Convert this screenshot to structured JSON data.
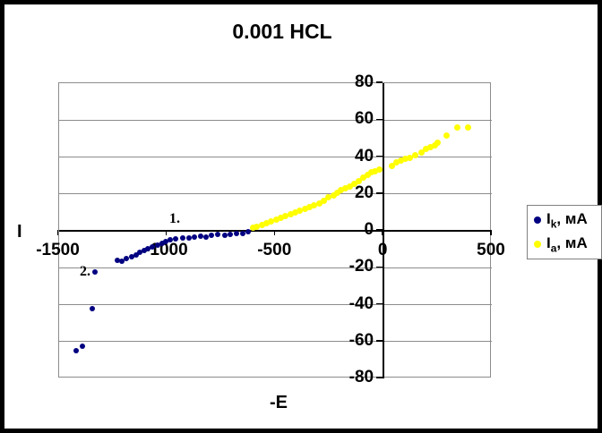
{
  "title": "0.001 HCL",
  "axis_titles": {
    "y": "I",
    "x": "-E"
  },
  "legend": {
    "items": [
      {
        "symbol": "I",
        "sub": "k",
        "suffix": ", мА",
        "series": "cathodic",
        "color": "#000080"
      },
      {
        "symbol": "I",
        "sub": "a",
        "suffix": ", мА",
        "series": "anodic",
        "color": "#FFFF00"
      }
    ]
  },
  "chart_data": {
    "type": "scatter",
    "title": "0.001 HCL",
    "xlabel": "-E",
    "ylabel": "I",
    "xlim": [
      -1500,
      500
    ],
    "ylim": [
      -80,
      80
    ],
    "x_ticks": [
      -1500,
      -1000,
      -500,
      0,
      500
    ],
    "x_tick_labels": [
      "-1500",
      "-1000",
      "-500",
      "0",
      "500"
    ],
    "y_ticks": [
      80,
      60,
      40,
      20,
      0,
      -20,
      -40,
      -60,
      -80
    ],
    "y_tick_labels": [
      "80",
      "60",
      "40",
      "20",
      "0",
      "-20",
      "-40",
      "-60",
      "-80"
    ],
    "grid": "horizontal",
    "legend_position": "right",
    "series": [
      {
        "name": "Ik, мА",
        "color": "#000080",
        "marker_px": 6,
        "points": [
          [
            -1415,
            -65.5
          ],
          [
            -1385,
            -63
          ],
          [
            -1340,
            -42.5
          ],
          [
            -1330,
            -23
          ],
          [
            -1225,
            -16.5
          ],
          [
            -1205,
            -17
          ],
          [
            -1185,
            -15.5
          ],
          [
            -1160,
            -14.5
          ],
          [
            -1140,
            -13.5
          ],
          [
            -1120,
            -12
          ],
          [
            -1100,
            -11
          ],
          [
            -1085,
            -10
          ],
          [
            -1065,
            -9
          ],
          [
            -1040,
            -8
          ],
          [
            -1020,
            -7.5
          ],
          [
            -1000,
            -6.5
          ],
          [
            -980,
            -5.5
          ],
          [
            -955,
            -5
          ],
          [
            -925,
            -4.5
          ],
          [
            -895,
            -4.5
          ],
          [
            -870,
            -4
          ],
          [
            -840,
            -3.5
          ],
          [
            -815,
            -4
          ],
          [
            -790,
            -3
          ],
          [
            -760,
            -2.5
          ],
          [
            -730,
            -3
          ],
          [
            -705,
            -2.5
          ],
          [
            -675,
            -2
          ],
          [
            -645,
            -2
          ],
          [
            -620,
            -1
          ]
        ]
      },
      {
        "name": "Ia, мА",
        "color": "#FFFF00",
        "marker_px": 7,
        "points": [
          [
            -600,
            1
          ],
          [
            -580,
            1.5
          ],
          [
            -558,
            2.5
          ],
          [
            -536,
            3.5
          ],
          [
            -514,
            4.5
          ],
          [
            -492,
            5.5
          ],
          [
            -470,
            6.5
          ],
          [
            -448,
            7.5
          ],
          [
            -426,
            8.5
          ],
          [
            -404,
            9.5
          ],
          [
            -382,
            10.5
          ],
          [
            -360,
            11.5
          ],
          [
            -338,
            12.5
          ],
          [
            -316,
            13.5
          ],
          [
            -294,
            14.5
          ],
          [
            -270,
            16
          ],
          [
            -249,
            17.5
          ],
          [
            -228,
            18.5
          ],
          [
            -208,
            20
          ],
          [
            -191,
            21.5
          ],
          [
            -174,
            22.5
          ],
          [
            -153,
            23.5
          ],
          [
            -132,
            25
          ],
          [
            -112,
            26.5
          ],
          [
            -91,
            28.5
          ],
          [
            -70,
            30
          ],
          [
            -54,
            31.5
          ],
          [
            -37,
            32
          ],
          [
            -17,
            32.5
          ],
          [
            41,
            34.5
          ],
          [
            62,
            36.5
          ],
          [
            83,
            37.5
          ],
          [
            104,
            38.5
          ],
          [
            124,
            39
          ],
          [
            149,
            40.5
          ],
          [
            178,
            42
          ],
          [
            199,
            44
          ],
          [
            220,
            45
          ],
          [
            240,
            46
          ],
          [
            253,
            47.5
          ],
          [
            294,
            51
          ],
          [
            344,
            55.5
          ],
          [
            394,
            55.5
          ]
        ]
      }
    ],
    "annotations": [
      {
        "text": "1.",
        "x": -960,
        "y": 6
      },
      {
        "text": "2.",
        "x": -1374,
        "y": -23
      }
    ]
  }
}
